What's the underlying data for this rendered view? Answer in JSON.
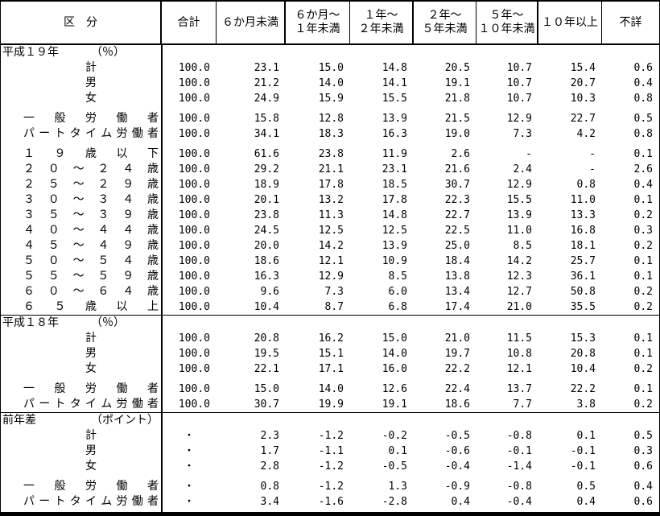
{
  "table": {
    "columns": [
      "区　分",
      "合計",
      "６か月未満",
      "６か月～\n１年未満",
      "１年～\n２年未満",
      "２年～\n５年未満",
      "５年～\n１０年未満",
      "１０年以上",
      "不詳"
    ],
    "sections": [
      {
        "title": "平成１９年",
        "unit": "（％）",
        "groups": [
          [
            {
              "label": "計",
              "align": "center",
              "values": [
                "100.0",
                "23.1",
                "15.0",
                "14.8",
                "20.5",
                "10.7",
                "15.4",
                "0.6"
              ]
            },
            {
              "label": "男",
              "align": "center",
              "values": [
                "100.0",
                "21.2",
                "14.0",
                "14.1",
                "19.1",
                "10.7",
                "20.7",
                "0.4"
              ]
            },
            {
              "label": "女",
              "align": "center",
              "values": [
                "100.0",
                "24.9",
                "15.9",
                "15.5",
                "21.8",
                "10.7",
                "10.3",
                "0.8"
              ]
            }
          ],
          [
            {
              "label": "一般労働者",
              "align": "justify",
              "values": [
                "100.0",
                "15.8",
                "12.8",
                "13.9",
                "21.5",
                "12.9",
                "22.7",
                "0.5"
              ]
            },
            {
              "label": "パートタイム労働者",
              "align": "justify",
              "values": [
                "100.0",
                "34.1",
                "18.3",
                "16.3",
                "19.0",
                "7.3",
                "4.2",
                "0.8"
              ]
            }
          ],
          [
            {
              "label": "１９歳以下",
              "align": "justify",
              "values": [
                "100.0",
                "61.6",
                "23.8",
                "11.9",
                "2.6",
                "-",
                "-",
                "0.1"
              ]
            },
            {
              "label": "２０～２４歳",
              "align": "justify",
              "values": [
                "100.0",
                "29.2",
                "21.1",
                "23.1",
                "21.6",
                "2.4",
                "-",
                "2.6"
              ]
            },
            {
              "label": "２５～２９歳",
              "align": "justify",
              "values": [
                "100.0",
                "18.9",
                "17.8",
                "18.5",
                "30.7",
                "12.9",
                "0.8",
                "0.4"
              ]
            },
            {
              "label": "３０～３４歳",
              "align": "justify",
              "values": [
                "100.0",
                "20.1",
                "13.2",
                "17.8",
                "22.3",
                "15.5",
                "11.0",
                "0.1"
              ]
            },
            {
              "label": "３５～３９歳",
              "align": "justify",
              "values": [
                "100.0",
                "23.8",
                "11.3",
                "14.8",
                "22.7",
                "13.9",
                "13.3",
                "0.2"
              ]
            },
            {
              "label": "４０～４４歳",
              "align": "justify",
              "values": [
                "100.0",
                "24.5",
                "12.5",
                "12.5",
                "22.5",
                "11.0",
                "16.8",
                "0.3"
              ]
            },
            {
              "label": "４５～４９歳",
              "align": "justify",
              "values": [
                "100.0",
                "20.0",
                "14.2",
                "13.9",
                "25.0",
                "8.5",
                "18.1",
                "0.2"
              ]
            },
            {
              "label": "５０～５４歳",
              "align": "justify",
              "values": [
                "100.0",
                "18.6",
                "12.1",
                "10.9",
                "18.4",
                "14.2",
                "25.7",
                "0.1"
              ]
            },
            {
              "label": "５５～５９歳",
              "align": "justify",
              "values": [
                "100.0",
                "16.3",
                "12.9",
                "8.5",
                "13.8",
                "12.3",
                "36.1",
                "0.1"
              ]
            },
            {
              "label": "６０～６４歳",
              "align": "justify",
              "values": [
                "100.0",
                "9.6",
                "7.3",
                "6.0",
                "13.4",
                "12.7",
                "50.8",
                "0.2"
              ]
            },
            {
              "label": "６５歳以上",
              "align": "justify",
              "values": [
                "100.0",
                "10.4",
                "8.7",
                "6.8",
                "17.4",
                "21.0",
                "35.5",
                "0.2"
              ]
            }
          ]
        ]
      },
      {
        "title": "平成１８年",
        "unit": "（％）",
        "groups": [
          [
            {
              "label": "計",
              "align": "center",
              "values": [
                "100.0",
                "20.8",
                "16.2",
                "15.0",
                "21.0",
                "11.5",
                "15.3",
                "0.1"
              ]
            },
            {
              "label": "男",
              "align": "center",
              "values": [
                "100.0",
                "19.5",
                "15.1",
                "14.0",
                "19.7",
                "10.8",
                "20.8",
                "0.1"
              ]
            },
            {
              "label": "女",
              "align": "center",
              "values": [
                "100.0",
                "22.1",
                "17.1",
                "16.0",
                "22.2",
                "12.1",
                "10.4",
                "0.2"
              ]
            }
          ],
          [
            {
              "label": "一般労働者",
              "align": "justify",
              "values": [
                "100.0",
                "15.0",
                "14.0",
                "12.6",
                "22.4",
                "13.7",
                "22.2",
                "0.1"
              ]
            },
            {
              "label": "パートタイム労働者",
              "align": "justify",
              "values": [
                "100.0",
                "30.7",
                "19.9",
                "19.1",
                "18.6",
                "7.7",
                "3.8",
                "0.2"
              ]
            }
          ]
        ]
      },
      {
        "title": "前年差",
        "unit": "（ポイント）",
        "groups": [
          [
            {
              "label": "計",
              "align": "center",
              "values": [
                "・",
                "2.3",
                "-1.2",
                "-0.2",
                "-0.5",
                "-0.8",
                "0.1",
                "0.5"
              ]
            },
            {
              "label": "男",
              "align": "center",
              "values": [
                "・",
                "1.7",
                "-1.1",
                "0.1",
                "-0.6",
                "-0.1",
                "-0.1",
                "0.3"
              ]
            },
            {
              "label": "女",
              "align": "center",
              "values": [
                "・",
                "2.8",
                "-1.2",
                "-0.5",
                "-0.4",
                "-1.4",
                "-0.1",
                "0.6"
              ]
            }
          ],
          [
            {
              "label": "一般労働者",
              "align": "justify",
              "values": [
                "・",
                "0.8",
                "-1.2",
                "1.3",
                "-0.9",
                "-0.8",
                "0.5",
                "0.4"
              ]
            },
            {
              "label": "パートタイム労働者",
              "align": "justify",
              "values": [
                "・",
                "3.4",
                "-1.6",
                "-2.8",
                "0.4",
                "-0.4",
                "0.4",
                "0.6"
              ]
            }
          ]
        ]
      }
    ]
  }
}
